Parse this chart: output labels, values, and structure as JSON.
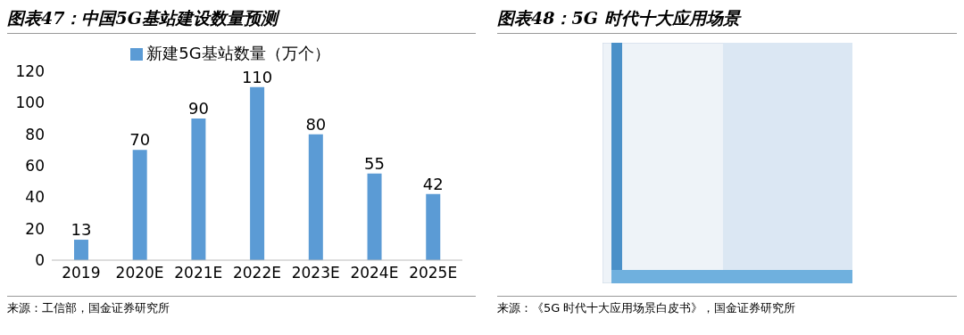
{
  "chart_data": [
    {
      "type": "bar",
      "title": "图表47：中国5G基站建设数量预测",
      "categories": [
        "2019",
        "2020E",
        "2021E",
        "2022E",
        "2023E",
        "2024E",
        "2025E"
      ],
      "series": [
        {
          "name": "新建5G基站数量（万个）",
          "color": "#5b9bd5",
          "values": [
            13,
            70,
            90,
            110,
            80,
            55,
            42
          ]
        }
      ],
      "ylim": [
        0,
        120
      ],
      "yticks": [
        0,
        20,
        40,
        60,
        80,
        100,
        120
      ],
      "legend": "top",
      "data_labels": true,
      "annotations": [
        "来源：工信部，国金证券研究所"
      ]
    },
    {
      "type": "other",
      "title": "图表48：5G 时代十大应用场景",
      "annotations": [
        "来源：《5G 时代十大应用场景白皮书》，国金证券研究所"
      ]
    }
  ]
}
